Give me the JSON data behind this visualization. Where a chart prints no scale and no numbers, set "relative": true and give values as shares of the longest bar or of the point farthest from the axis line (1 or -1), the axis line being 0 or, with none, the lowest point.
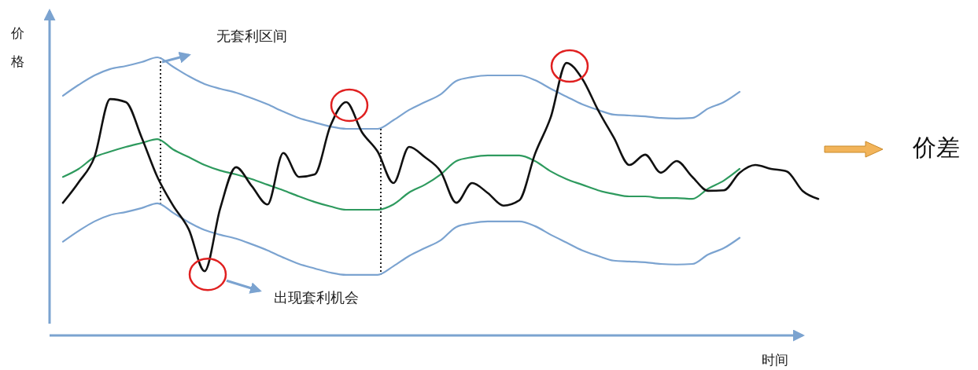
{
  "chart_data": {
    "type": "line",
    "relative": true,
    "xlabel": "时间",
    "ylabel": "价格",
    "line_style": "solid",
    "marker": "none",
    "annotations": [
      "无套利区间",
      "出现套利机会",
      "价差"
    ],
    "categories": [
      null,
      null,
      null,
      null,
      null,
      null,
      null,
      null,
      null,
      null,
      null,
      null,
      null,
      null,
      null,
      null,
      null,
      null,
      null,
      null,
      null,
      null,
      null,
      null,
      null,
      null,
      null,
      null,
      null,
      null,
      null,
      null,
      null,
      null,
      null,
      null,
      null,
      null,
      null,
      null,
      null,
      null,
      null,
      null,
      null,
      null,
      null,
      null,
      null
    ],
    "series": [
      {
        "color": "#7ba3d0",
        "values": [
          0.862,
          0.901,
          0.935,
          0.958,
          0.969,
          0.983,
          1,
          0.966,
          0.932,
          0.904,
          0.887,
          0.873,
          0.853,
          0.831,
          0.805,
          0.782,
          0.766,
          0.751,
          0.743,
          0.743,
          0.743,
          0.774,
          0.811,
          0.839,
          0.867,
          0.915,
          0.929,
          0.935,
          0.935,
          0.935,
          0.918,
          0.887,
          0.859,
          0.831,
          0.811,
          0.794,
          0.791,
          0.788,
          0.782,
          0.78,
          0.782,
          0.816,
          0.839,
          0.876,
          null,
          null,
          null,
          null,
          null
        ]
      },
      {
        "color": "#7ba3d0",
        "values": [
          0.337,
          0.376,
          0.41,
          0.433,
          0.444,
          0.458,
          0.475,
          0.441,
          0.407,
          0.379,
          0.362,
          0.348,
          0.328,
          0.306,
          0.28,
          0.257,
          0.241,
          0.226,
          0.218,
          0.218,
          0.218,
          0.249,
          0.286,
          0.314,
          0.342,
          0.39,
          0.404,
          0.41,
          0.41,
          0.41,
          0.393,
          0.362,
          0.334,
          0.306,
          0.286,
          0.269,
          0.266,
          0.263,
          0.257,
          0.255,
          0.257,
          0.291,
          0.314,
          0.351,
          null,
          null,
          null,
          null,
          null
        ]
      },
      {
        "color": "#2e9a5e",
        "values": [
          0.57,
          0.599,
          0.641,
          0.661,
          0.678,
          0.692,
          0.706,
          0.669,
          0.641,
          0.613,
          0.593,
          0.579,
          0.562,
          0.542,
          0.522,
          0.5,
          0.48,
          0.464,
          0.452,
          0.452,
          0.452,
          0.471,
          0.514,
          0.542,
          0.579,
          0.627,
          0.641,
          0.647,
          0.647,
          0.647,
          0.627,
          0.59,
          0.562,
          0.542,
          0.522,
          0.509,
          0.5,
          0.5,
          0.494,
          0.494,
          0.491,
          0.528,
          0.557,
          0.599,
          null,
          null,
          null,
          null,
          null
        ]
      },
      {
        "color": "#111111",
        "values": [
          0.477,
          0.551,
          0.641,
          0.85,
          0.839,
          0.712,
          0.57,
          0.467,
          0.381,
          0.231,
          0.458,
          0.605,
          0.537,
          0.471,
          0.656,
          0.57,
          0.579,
          0.754,
          0.839,
          0.731,
          0.661,
          0.548,
          0.678,
          0.641,
          0.59,
          0.477,
          0.548,
          0.512,
          0.467,
          0.486,
          0.653,
          0.785,
          0.98,
          0.923,
          0.811,
          0.712,
          0.613,
          0.65,
          0.585,
          0.627,
          0.57,
          0.52,
          0.522,
          0.585,
          0.613,
          0.599,
          0.59,
          0.52,
          0.491
        ]
      }
    ]
  }
}
